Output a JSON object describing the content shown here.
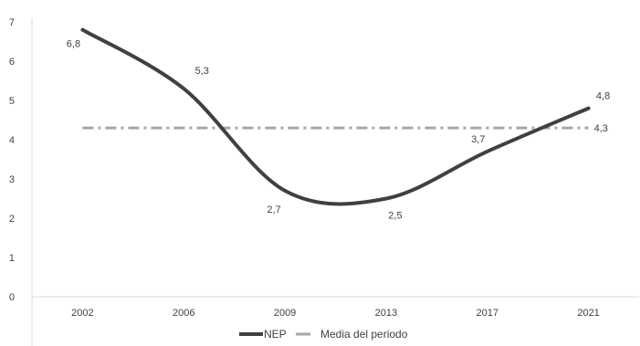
{
  "chart_data": {
    "type": "line",
    "title": "",
    "xlabel": "",
    "ylabel": "",
    "categories": [
      "2002",
      "2006",
      "2009",
      "2013",
      "2017",
      "2021"
    ],
    "ylim": [
      0,
      7
    ],
    "yticks": [
      "0",
      "1",
      "2",
      "3",
      "4",
      "5",
      "6",
      "7"
    ],
    "grid": false,
    "legend_position": "bottom",
    "series": [
      {
        "name": "NEP",
        "values": [
          6.8,
          5.3,
          2.7,
          2.5,
          3.7,
          4.8
        ],
        "labels": [
          "6,8",
          "5,3",
          "2,7",
          "2,5",
          "3,7",
          "4,8"
        ],
        "color": "#404040",
        "style": "solid-smooth"
      },
      {
        "name": "Media del periodo",
        "values": [
          4.3,
          4.3,
          4.3,
          4.3,
          4.3,
          4.3
        ],
        "end_label": "4,3",
        "color": "#a6a6a6",
        "style": "dash-dot"
      }
    ]
  }
}
